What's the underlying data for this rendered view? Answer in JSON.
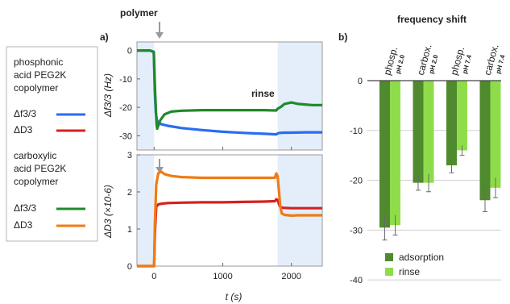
{
  "legend_box": {
    "group1": [
      "phosphonic",
      "acid PEG2K",
      "copolymer"
    ],
    "group2": [
      "carboxylic",
      "acid PEG2K",
      "copolymer"
    ],
    "entries": [
      {
        "label": "Δf3/3",
        "color": "#2a6cf2"
      },
      {
        "label": "ΔD3",
        "color": "#d62020"
      },
      {
        "label": "Δf3/3",
        "color": "#1f8a2a"
      },
      {
        "label": "ΔD3",
        "color": "#f07b14"
      }
    ]
  },
  "panel_a": {
    "label": "a)",
    "annotations": {
      "polymer": "polymer",
      "rinse": "rinse"
    },
    "xlabel": "t (s)",
    "x_ticks": [
      "0",
      "1000",
      "2000"
    ]
  },
  "panel_b": {
    "label": "b)",
    "title": "frequency shift",
    "legend": {
      "adsorption": "adsorption",
      "rinse": "rinse"
    }
  },
  "colors": {
    "adsorption": "#4f8a2e",
    "rinse": "#8fdc4a",
    "shade": "#e3eefa",
    "grid": "#cfcfcf"
  },
  "chart_data": [
    {
      "type": "line",
      "title": "",
      "xlabel": "t (s)",
      "ylabel": "Δf3/3 (Hz)",
      "xlim": [
        -250,
        2450
      ],
      "ylim": [
        -35,
        3
      ],
      "y_ticks": [
        "0",
        "-10",
        "-20",
        "-30"
      ],
      "shaded_regions_x": [
        [
          -250,
          0
        ],
        [
          1800,
          2450
        ]
      ],
      "series": [
        {
          "name": "Δf3/3",
          "color": "#2a6cf2",
          "x": [
            -250,
            -60,
            -5,
            10,
            25,
            40,
            60,
            100,
            200,
            400,
            700,
            1000,
            1300,
            1600,
            1780,
            1800,
            1830,
            1900,
            2000,
            2200,
            2450
          ],
          "y": [
            0,
            0,
            -0.5,
            -14,
            -22,
            -24.5,
            -25.3,
            -25.9,
            -26.5,
            -27.3,
            -28,
            -28.6,
            -29,
            -29.3,
            -29.5,
            -29.2,
            -29,
            -28.9,
            -28.9,
            -28.8,
            -28.8
          ]
        },
        {
          "name": "Δf3/3",
          "color": "#1f8a2a",
          "x": [
            -250,
            -60,
            -5,
            15,
            35,
            45,
            60,
            90,
            150,
            250,
            400,
            700,
            1000,
            1300,
            1600,
            1780,
            1800,
            1850,
            1900,
            2000,
            2100,
            2300,
            2450
          ],
          "y": [
            0,
            0,
            -0.6,
            -15,
            -26,
            -27.5,
            -26.5,
            -24.5,
            -22.5,
            -21.5,
            -21.2,
            -21,
            -21,
            -21,
            -21,
            -21.1,
            -20.5,
            -19.8,
            -18.8,
            -18.3,
            -18.8,
            -19.2,
            -19.2
          ]
        }
      ]
    },
    {
      "type": "line",
      "title": "",
      "xlabel": "t (s)",
      "ylabel": "ΔD3 (×10-6)",
      "xlim": [
        -250,
        2450
      ],
      "ylim": [
        0,
        3
      ],
      "y_ticks": [
        "0",
        "1",
        "2",
        "3"
      ],
      "shaded_regions_x": [
        [
          -250,
          0
        ],
        [
          1800,
          2450
        ]
      ],
      "series": [
        {
          "name": "ΔD3",
          "color": "#d62020",
          "x": [
            -250,
            -40,
            0,
            12,
            30,
            60,
            100,
            200,
            400,
            700,
            1000,
            1300,
            1600,
            1760,
            1780,
            1800,
            1830,
            1850,
            1900,
            2000,
            2450
          ],
          "y": [
            0,
            0,
            0,
            0.9,
            1.6,
            1.66,
            1.68,
            1.7,
            1.71,
            1.72,
            1.72,
            1.73,
            1.74,
            1.75,
            1.8,
            1.78,
            1.62,
            1.58,
            1.57,
            1.56,
            1.56
          ]
        },
        {
          "name": "ΔD3",
          "color": "#f07b14",
          "x": [
            -250,
            -40,
            0,
            12,
            30,
            60,
            100,
            150,
            250,
            400,
            700,
            1000,
            1300,
            1600,
            1760,
            1780,
            1800,
            1840,
            1860,
            1900,
            2000,
            2100,
            2450
          ],
          "y": [
            0,
            0,
            0,
            1.2,
            2.2,
            2.5,
            2.55,
            2.48,
            2.43,
            2.4,
            2.38,
            2.38,
            2.38,
            2.38,
            2.38,
            2.5,
            2.42,
            1.6,
            1.42,
            1.38,
            1.36,
            1.37,
            1.37
          ]
        }
      ]
    },
    {
      "type": "bar",
      "title": "frequency shift",
      "categories": [
        {
          "main": "phosp.",
          "sub": "pH 2.0"
        },
        {
          "main": "carbox.",
          "sub": "pH 2.0"
        },
        {
          "main": "phosp.",
          "sub": "pH 7.4"
        },
        {
          "main": "carbox.",
          "sub": "pH 7.4"
        }
      ],
      "ylim": [
        -45,
        0
      ],
      "y_ticks": [
        0,
        -10,
        -20,
        -30,
        -40
      ],
      "series": [
        {
          "name": "adsorption",
          "color": "#4f8a2e",
          "values": [
            -29.5,
            -20.5,
            -17,
            -24
          ],
          "errors": [
            2.5,
            1.5,
            1.5,
            2.3
          ]
        },
        {
          "name": "rinse",
          "color": "#8fdc4a",
          "values": [
            -29,
            -20.5,
            -14,
            -21.5
          ],
          "errors": [
            2.0,
            1.8,
            1.0,
            2.0
          ]
        }
      ],
      "legend_position": "bottom-left"
    }
  ]
}
